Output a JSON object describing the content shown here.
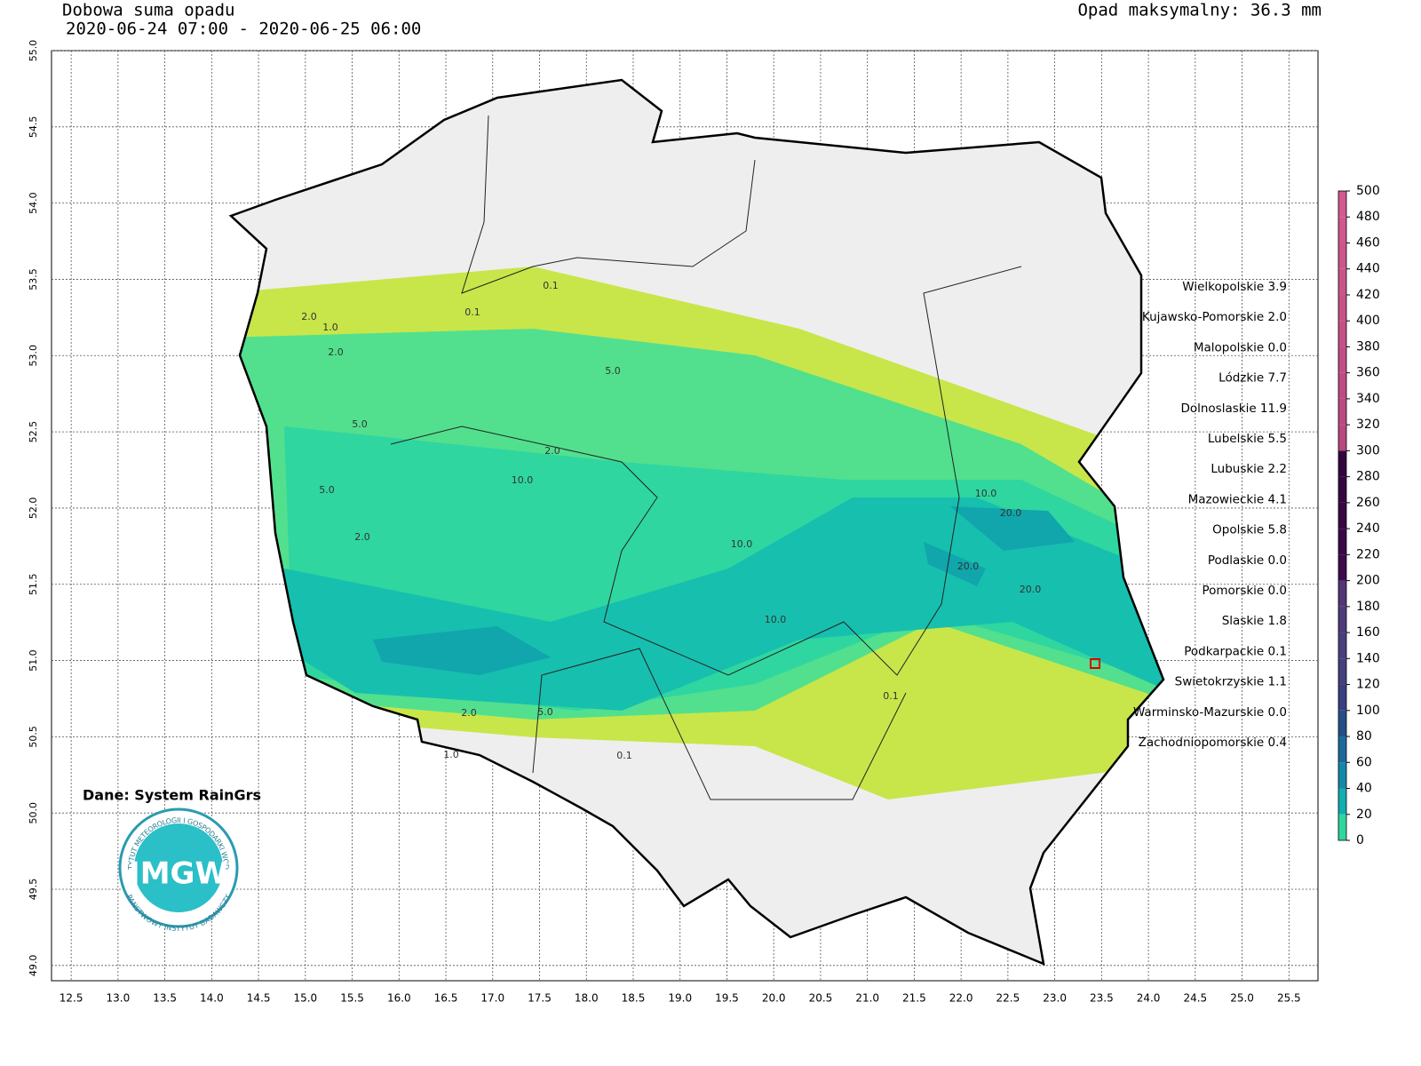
{
  "header": {
    "title": "Dobowa suma opadu",
    "period": "2020-06-24 07:00 - 2020-06-25 06:00",
    "max": "Opad maksymalny: 36.3 mm"
  },
  "source": "Dane: System RainGrs",
  "logo": {
    "main": "IMGW",
    "ring_top": "INSTYTUT METEOROLOGII I GOSPODARKI WODNEJ",
    "ring_bottom": "PAŃSTWOWY INSTYTUT BADAWCZY"
  },
  "regions": [
    "Wielkopolskie 3.9",
    "Kujawsko-Pomorskie 2.0",
    "Malopolskie 0.0",
    "Lódzkie 7.7",
    "Dolnoslaskie 11.9",
    "Lubelskie 5.5",
    "Lubuskie 2.2",
    "Mazowieckie 4.1",
    "Opolskie 5.8",
    "Podlaskie 0.0",
    "Pomorskie 0.0",
    "Slaskie 1.8",
    "Podkarpackie 0.1",
    "Swietokrzyskie 1.1",
    "Warminsko-Mazurskie 0.0",
    "Zachodniopomorskie 0.4"
  ],
  "map": {
    "xlim": [
      12.29,
      25.81
    ],
    "ylim": [
      48.9,
      55.0
    ],
    "xticks": [
      12.5,
      {
        "value": 13,
        "label": "13.0"
      },
      13.5,
      {
        "value": 14,
        "label": "14.0"
      },
      14.5,
      {
        "value": 15,
        "label": "15.0"
      },
      15.5,
      {
        "value": 16,
        "label": "16.0"
      },
      16.5,
      {
        "value": 17,
        "label": "17.0"
      },
      17.5,
      {
        "value": 18,
        "label": "18.0"
      },
      18.5,
      {
        "value": 19,
        "label": "19.0"
      },
      19.5,
      {
        "value": 20,
        "label": "20.0"
      },
      20.5,
      {
        "value": 21,
        "label": "21.0"
      },
      21.5,
      {
        "value": 22,
        "label": "22.0"
      },
      22.5,
      {
        "value": 23,
        "label": "23.0"
      },
      23.5,
      {
        "value": 24,
        "label": "24.0"
      },
      24.5,
      {
        "value": 25,
        "label": "25.0"
      },
      25.5
    ],
    "yticks": [
      {
        "value": 49,
        "label": "49.0"
      },
      49.5,
      {
        "value": 50,
        "label": "50.0"
      },
      50.5,
      {
        "value": 51,
        "label": "51.0"
      },
      51.5,
      {
        "value": 52,
        "label": "52.0"
      },
      52.5,
      {
        "value": 53,
        "label": "53.0"
      },
      53.5,
      {
        "value": 54,
        "label": "54.0"
      },
      54.5,
      {
        "value": 55,
        "label": "55.0"
      }
    ],
    "contour_labels": [
      "0.1",
      "0.1",
      "2.0",
      "1.0",
      "2.0",
      "5.0",
      "5.0",
      "2.0",
      "10.0",
      "5.0",
      "2.0",
      "10.0",
      "20.0",
      "10.0",
      "20.0",
      "20.0",
      "10.0",
      "2.0",
      "5.0",
      "0.1",
      "0.1",
      "1.0"
    ]
  },
  "colorbar": {
    "lim": [
      0,
      500
    ],
    "ticks": [
      0,
      20,
      40,
      60,
      80,
      100,
      120,
      140,
      160,
      180,
      200,
      220,
      240,
      260,
      280,
      300,
      320,
      340,
      360,
      380,
      400,
      420,
      440,
      460,
      480,
      500
    ],
    "colors": [
      "#2fd6a0",
      "#10aeb0",
      "#1588a8",
      "#1d6a98",
      "#234f86",
      "#3a3f80",
      "#44407e",
      "#4a3f7e",
      "#4d3b7a",
      "#523676",
      "#3d0a4e",
      "#3a0848",
      "#380744",
      "#360642",
      "#34053f",
      "#b8487e",
      "#bb4a80",
      "#be4c82",
      "#c14e84",
      "#c45086",
      "#c75288",
      "#c9548a",
      "#cc568c",
      "#cf588e",
      "#d25a90"
    ]
  }
}
